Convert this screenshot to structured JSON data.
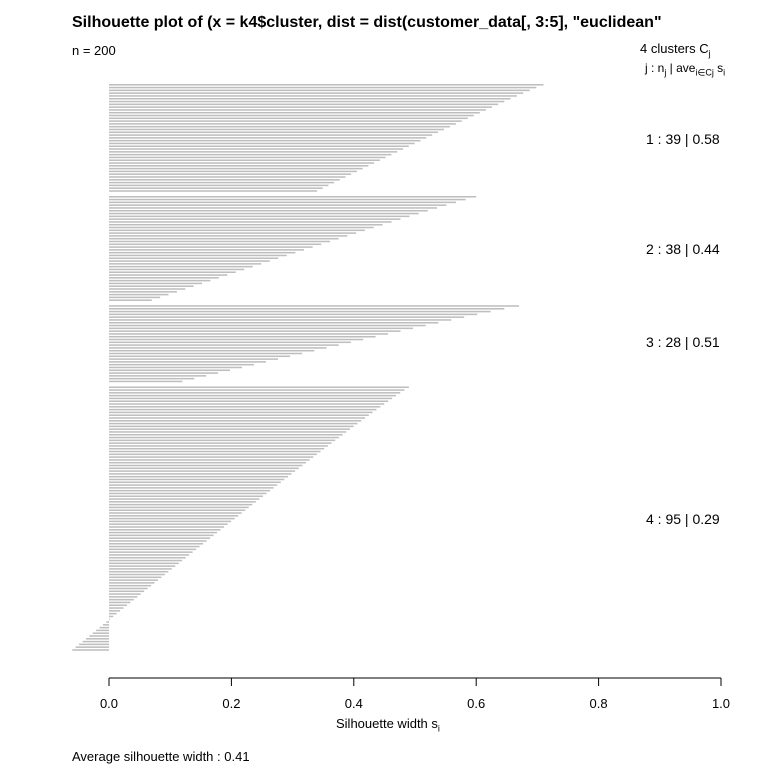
{
  "chart_data": {
    "type": "bar",
    "orientation": "horizontal",
    "title": "Silhouette plot of (x = k4$cluster, dist = dist(customer_data[, 3:5], \"euclidean\"",
    "n_label": "n = 200",
    "xlabel": "Silhouette width s",
    "xlabel_sub": "i",
    "xlim": [
      0,
      1
    ],
    "x_ticks": [
      "0.0",
      "0.2",
      "0.4",
      "0.6",
      "0.8",
      "1.0"
    ],
    "legend": {
      "heading": "4  clusters  C",
      "heading_sub": "j",
      "columns_prefix": "j :  n",
      "columns_sub1": "j",
      "columns_mid": " | ave",
      "columns_sub2": "i∈Cj",
      "columns_mid2": "  s",
      "columns_sub3": "i"
    },
    "clusters": [
      {
        "id": 1,
        "n": 39,
        "avg": 0.58,
        "label": "1 :  39  |  0.58",
        "max": 0.71,
        "min": 0.34
      },
      {
        "id": 2,
        "n": 38,
        "avg": 0.44,
        "label": "2 :  38  |  0.44",
        "max": 0.6,
        "min": 0.07
      },
      {
        "id": 3,
        "n": 28,
        "avg": 0.51,
        "label": "3 :  28  |  0.51",
        "max": 0.67,
        "min": 0.12
      },
      {
        "id": 4,
        "n": 95,
        "avg": 0.29,
        "label": "4 :  95  |  0.29",
        "max": 0.49,
        "min": -0.06
      }
    ],
    "average_label": "Average silhouette width :  0.41",
    "colors": {
      "bar": "#bebebe",
      "axis": "#000000"
    }
  }
}
